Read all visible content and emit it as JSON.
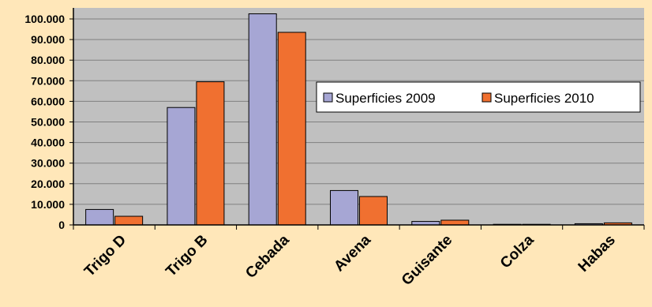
{
  "chart_data": {
    "type": "bar",
    "title": "",
    "xlabel": "",
    "ylabel": "",
    "categories": [
      "Trigo D",
      "Trigo B",
      "Cebada",
      "Avena",
      "Guisante",
      "Colza",
      "Habas"
    ],
    "series": [
      {
        "name": "Superficies 2009",
        "color": "#a6a6d4",
        "values": [
          7500,
          57000,
          102500,
          16700,
          1700,
          300,
          600
        ]
      },
      {
        "name": "Superficies 2010",
        "color": "#f07030",
        "values": [
          4200,
          69500,
          93500,
          13800,
          2300,
          300,
          1000
        ]
      }
    ],
    "ylim": [
      0,
      100000
    ],
    "yticks": [
      "0",
      "10.000",
      "20.000",
      "30.000",
      "40.000",
      "50.000",
      "60.000",
      "70.000",
      "80.000",
      "90.000",
      "100.000"
    ],
    "grid": true,
    "legend": "right",
    "colors": {
      "background": "#ffe7b9",
      "plot_area": "#c0c0c0",
      "grid": "#808080"
    }
  }
}
